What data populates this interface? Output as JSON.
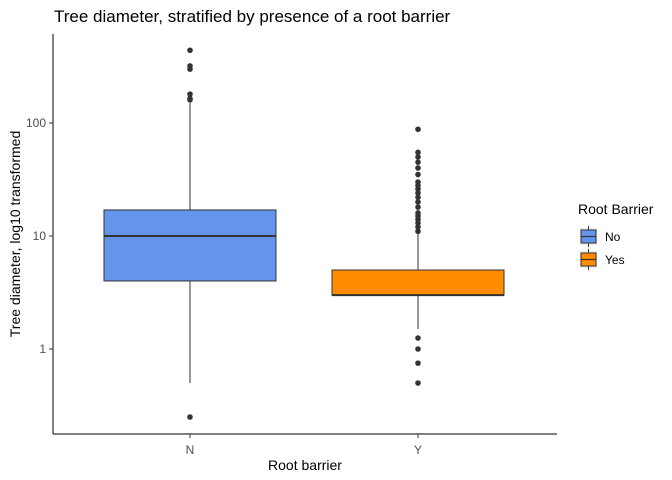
{
  "chart_data": {
    "type": "boxplot",
    "title": "Tree diameter, stratified by presence of a root barrier",
    "xlabel": "Root barrier",
    "ylabel": "Tree diameter, log10 transformed",
    "y_scale": "log10",
    "ylim": [
      0.2,
      600
    ],
    "y_ticks": [
      {
        "value": 1,
        "label": "1"
      },
      {
        "value": 10,
        "label": "10"
      },
      {
        "value": 100,
        "label": "100"
      }
    ],
    "categories": [
      "N",
      "Y"
    ],
    "legend": {
      "title": "Root Barrier",
      "position": "right",
      "entries": [
        {
          "label": "No",
          "color": "#6495ED"
        },
        {
          "label": "Yes",
          "color": "#FF8C00"
        }
      ]
    },
    "grid": false,
    "series": [
      {
        "category": "N",
        "legend_label": "No",
        "color": "#6495ED",
        "whisker_low": 0.5,
        "q1": 4,
        "median": 10,
        "q3": 17,
        "whisker_high": 150,
        "outliers": [
          0.25,
          160,
          165,
          180,
          300,
          320,
          440
        ]
      },
      {
        "category": "Y",
        "legend_label": "Yes",
        "color": "#FF8C00",
        "whisker_low": 1.5,
        "q1": 3,
        "median": 3,
        "q3": 5,
        "whisker_high": 10.5,
        "outliers": [
          0.5,
          0.75,
          1,
          1.25,
          11,
          12,
          13,
          14,
          15,
          16,
          18,
          20,
          22,
          24,
          26,
          28,
          30,
          35,
          40,
          45,
          50,
          55,
          88
        ]
      }
    ]
  }
}
